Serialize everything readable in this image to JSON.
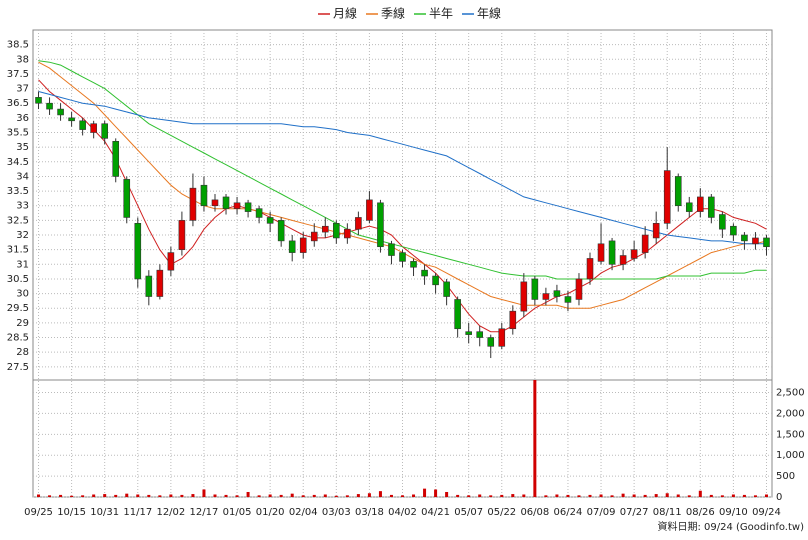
{
  "chart_data": {
    "type": "candlestick",
    "categories": [
      "09/25",
      null,
      null,
      "10/15",
      null,
      null,
      "10/31",
      null,
      null,
      "11/17",
      null,
      null,
      "12/02",
      null,
      null,
      "12/17",
      null,
      null,
      "01/05",
      null,
      null,
      "01/20",
      null,
      null,
      "02/04",
      null,
      null,
      "03/03",
      null,
      null,
      "03/18",
      null,
      null,
      "04/02",
      null,
      null,
      "04/21",
      null,
      null,
      "05/07",
      null,
      null,
      "05/22",
      null,
      null,
      "06/08",
      null,
      null,
      "06/24",
      null,
      null,
      "07/09",
      null,
      null,
      "07/27",
      null,
      null,
      "08/11",
      null,
      null,
      "08/26",
      null,
      null,
      "09/10",
      null,
      null,
      "09/24"
    ],
    "open": [
      36.7,
      36.5,
      36.3,
      36.0,
      35.9,
      35.5,
      35.8,
      35.2,
      33.9,
      32.4,
      30.6,
      29.9,
      30.8,
      31.5,
      32.5,
      33.7,
      33.0,
      33.3,
      32.9,
      33.1,
      32.9,
      32.6,
      32.5,
      31.8,
      31.4,
      31.8,
      32.1,
      32.4,
      31.9,
      32.2,
      32.5,
      33.1,
      31.7,
      31.4,
      31.1,
      30.8,
      30.6,
      30.4,
      29.8,
      28.7,
      28.7,
      28.5,
      28.2,
      28.8,
      29.4,
      30.5,
      29.8,
      30.1,
      29.9,
      29.8,
      30.5,
      31.1,
      31.8,
      31.0,
      31.2,
      31.4,
      31.9,
      32.4,
      34.0,
      33.1,
      32.8,
      33.3,
      32.7,
      32.3,
      32.0,
      31.7,
      31.9
    ],
    "high": [
      36.9,
      36.7,
      36.5,
      36.2,
      36.0,
      35.9,
      35.9,
      35.3,
      34.0,
      32.6,
      30.8,
      31.0,
      31.6,
      32.8,
      34.1,
      34.0,
      33.4,
      33.4,
      33.3,
      33.2,
      33.0,
      32.8,
      32.6,
      32.0,
      32.1,
      32.4,
      32.6,
      32.5,
      32.4,
      32.8,
      33.5,
      33.2,
      31.8,
      31.5,
      31.2,
      31.0,
      30.7,
      30.5,
      29.9,
      29.0,
      28.9,
      28.6,
      29.0,
      29.6,
      30.7,
      30.6,
      30.2,
      30.3,
      30.1,
      30.7,
      31.4,
      32.4,
      31.9,
      31.5,
      31.8,
      32.3,
      32.8,
      35.0,
      34.1,
      33.3,
      33.6,
      33.4,
      32.8,
      32.4,
      32.1,
      32.1,
      32.0
    ],
    "low": [
      36.3,
      36.1,
      35.9,
      35.7,
      35.4,
      35.3,
      35.1,
      33.8,
      32.4,
      30.2,
      29.6,
      29.8,
      30.6,
      31.3,
      32.3,
      32.8,
      32.8,
      32.7,
      32.7,
      32.6,
      32.4,
      32.1,
      31.6,
      31.1,
      31.2,
      31.6,
      31.9,
      31.7,
      31.7,
      32.0,
      32.4,
      31.4,
      31.0,
      30.9,
      30.6,
      30.3,
      30.0,
      29.6,
      28.5,
      28.3,
      28.2,
      27.8,
      28.1,
      28.6,
      29.2,
      29.6,
      29.6,
      29.7,
      29.4,
      29.6,
      30.3,
      31.0,
      30.8,
      30.8,
      31.1,
      31.2,
      31.7,
      32.2,
      32.8,
      32.6,
      32.6,
      32.4,
      31.9,
      31.8,
      31.5,
      31.5,
      31.3
    ],
    "close": [
      36.5,
      36.3,
      36.1,
      35.9,
      35.6,
      35.8,
      35.3,
      34.0,
      32.6,
      30.5,
      29.9,
      30.8,
      31.4,
      32.5,
      33.6,
      33.0,
      33.2,
      32.9,
      33.1,
      32.8,
      32.6,
      32.4,
      31.8,
      31.4,
      31.9,
      32.1,
      32.3,
      31.9,
      32.2,
      32.6,
      33.2,
      31.6,
      31.3,
      31.1,
      30.9,
      30.6,
      30.3,
      29.9,
      28.8,
      28.6,
      28.5,
      28.2,
      28.8,
      29.4,
      30.4,
      29.8,
      30.0,
      29.9,
      29.7,
      30.5,
      31.2,
      31.7,
      31.0,
      31.3,
      31.5,
      32.0,
      32.4,
      34.2,
      33.0,
      32.8,
      33.3,
      32.6,
      32.2,
      32.0,
      31.8,
      31.9,
      31.6
    ],
    "up_color": "#e00000",
    "down_color": "#00a000",
    "series": [
      {
        "name": "月線",
        "color": "#d02020",
        "values": [
          37.3,
          36.9,
          36.6,
          36.3,
          36.0,
          35.6,
          35.2,
          34.6,
          33.8,
          33.0,
          32.2,
          31.5,
          31.0,
          31.2,
          31.6,
          32.2,
          32.6,
          32.9,
          33.0,
          32.9,
          32.8,
          32.6,
          32.4,
          32.2,
          32.0,
          31.9,
          31.9,
          32.0,
          32.1,
          32.2,
          32.3,
          32.2,
          32.0,
          31.6,
          31.3,
          31.0,
          30.7,
          30.3,
          29.8,
          29.3,
          28.9,
          28.7,
          28.7,
          28.9,
          29.2,
          29.5,
          29.7,
          29.9,
          30.0,
          30.2,
          30.4,
          30.7,
          30.9,
          31.0,
          31.2,
          31.4,
          31.7,
          32.0,
          32.3,
          32.6,
          32.9,
          32.9,
          32.8,
          32.6,
          32.5,
          32.4,
          32.2
        ]
      },
      {
        "name": "季線",
        "color": "#e87820",
        "values": [
          37.9,
          37.7,
          37.4,
          37.1,
          36.8,
          36.5,
          36.1,
          35.7,
          35.3,
          34.9,
          34.5,
          34.1,
          33.7,
          33.4,
          33.2,
          33.0,
          32.9,
          32.9,
          32.9,
          32.9,
          32.8,
          32.7,
          32.6,
          32.5,
          32.4,
          32.3,
          32.2,
          32.1,
          32.0,
          31.9,
          31.8,
          31.7,
          31.6,
          31.4,
          31.2,
          31.0,
          30.9,
          30.7,
          30.5,
          30.3,
          30.1,
          29.9,
          29.8,
          29.7,
          29.6,
          29.6,
          29.6,
          29.6,
          29.5,
          29.5,
          29.5,
          29.6,
          29.7,
          29.8,
          30.0,
          30.2,
          30.4,
          30.6,
          30.8,
          31.0,
          31.2,
          31.4,
          31.5,
          31.6,
          31.7,
          31.7,
          31.8
        ]
      },
      {
        "name": "半年",
        "color": "#30c030",
        "values": [
          37.95,
          37.9,
          37.8,
          37.6,
          37.4,
          37.2,
          37.0,
          36.7,
          36.4,
          36.1,
          35.8,
          35.6,
          35.4,
          35.2,
          35.0,
          34.8,
          34.6,
          34.4,
          34.2,
          34.0,
          33.8,
          33.6,
          33.4,
          33.2,
          33.0,
          32.8,
          32.6,
          32.4,
          32.2,
          32.0,
          31.9,
          31.8,
          31.7,
          31.6,
          31.5,
          31.4,
          31.3,
          31.2,
          31.1,
          31.0,
          30.9,
          30.8,
          30.7,
          30.65,
          30.6,
          30.6,
          30.6,
          30.5,
          30.5,
          30.5,
          30.5,
          30.5,
          30.5,
          30.5,
          30.5,
          30.5,
          30.5,
          30.6,
          30.6,
          30.6,
          30.6,
          30.7,
          30.7,
          30.7,
          30.7,
          30.8,
          30.8
        ]
      },
      {
        "name": "年線",
        "color": "#2070c8",
        "values": [
          36.9,
          36.8,
          36.7,
          36.6,
          36.5,
          36.45,
          36.4,
          36.3,
          36.2,
          36.1,
          36.0,
          35.95,
          35.9,
          35.85,
          35.8,
          35.8,
          35.8,
          35.8,
          35.8,
          35.8,
          35.8,
          35.8,
          35.8,
          35.75,
          35.7,
          35.7,
          35.65,
          35.6,
          35.5,
          35.45,
          35.4,
          35.3,
          35.2,
          35.1,
          35.0,
          34.9,
          34.8,
          34.7,
          34.5,
          34.3,
          34.1,
          33.9,
          33.7,
          33.5,
          33.3,
          33.2,
          33.1,
          33.0,
          32.9,
          32.8,
          32.7,
          32.6,
          32.5,
          32.4,
          32.3,
          32.2,
          32.1,
          32.0,
          31.95,
          31.9,
          31.85,
          31.8,
          31.8,
          31.75,
          31.7,
          31.7,
          31.7
        ]
      }
    ],
    "ylim": [
      27.05,
      39
    ],
    "yticks": [
      27.5,
      28,
      28.5,
      29,
      29.5,
      30,
      30.5,
      31,
      31.5,
      32,
      32.5,
      33,
      33.5,
      34,
      34.5,
      35,
      35.5,
      36,
      36.5,
      37,
      37.5,
      38,
      38.5
    ],
    "volume": {
      "color": "#d00000",
      "values": [
        60,
        40,
        50,
        30,
        40,
        60,
        70,
        50,
        80,
        60,
        50,
        40,
        60,
        50,
        70,
        180,
        60,
        50,
        40,
        120,
        40,
        60,
        50,
        80,
        40,
        50,
        60,
        30,
        40,
        70,
        90,
        140,
        50,
        40,
        60,
        200,
        180,
        120,
        50,
        40,
        60,
        40,
        50,
        70,
        60,
        2800,
        40,
        60,
        50,
        40,
        50,
        60,
        40,
        80,
        60,
        50,
        70,
        90,
        60,
        40,
        150,
        50,
        40,
        60,
        50,
        40,
        60
      ],
      "ylim": [
        0,
        2800
      ],
      "yticks": [
        0,
        500,
        {
          "value": 1000,
          "label": "1,000"
        },
        {
          "value": 1500,
          "label": "1,500"
        },
        {
          "value": 2000,
          "label": "2,000"
        },
        {
          "value": 2500,
          "label": "2,500"
        }
      ]
    },
    "grid": true,
    "footer": "資料日期: 09/24  (Goodinfo.tw)"
  }
}
